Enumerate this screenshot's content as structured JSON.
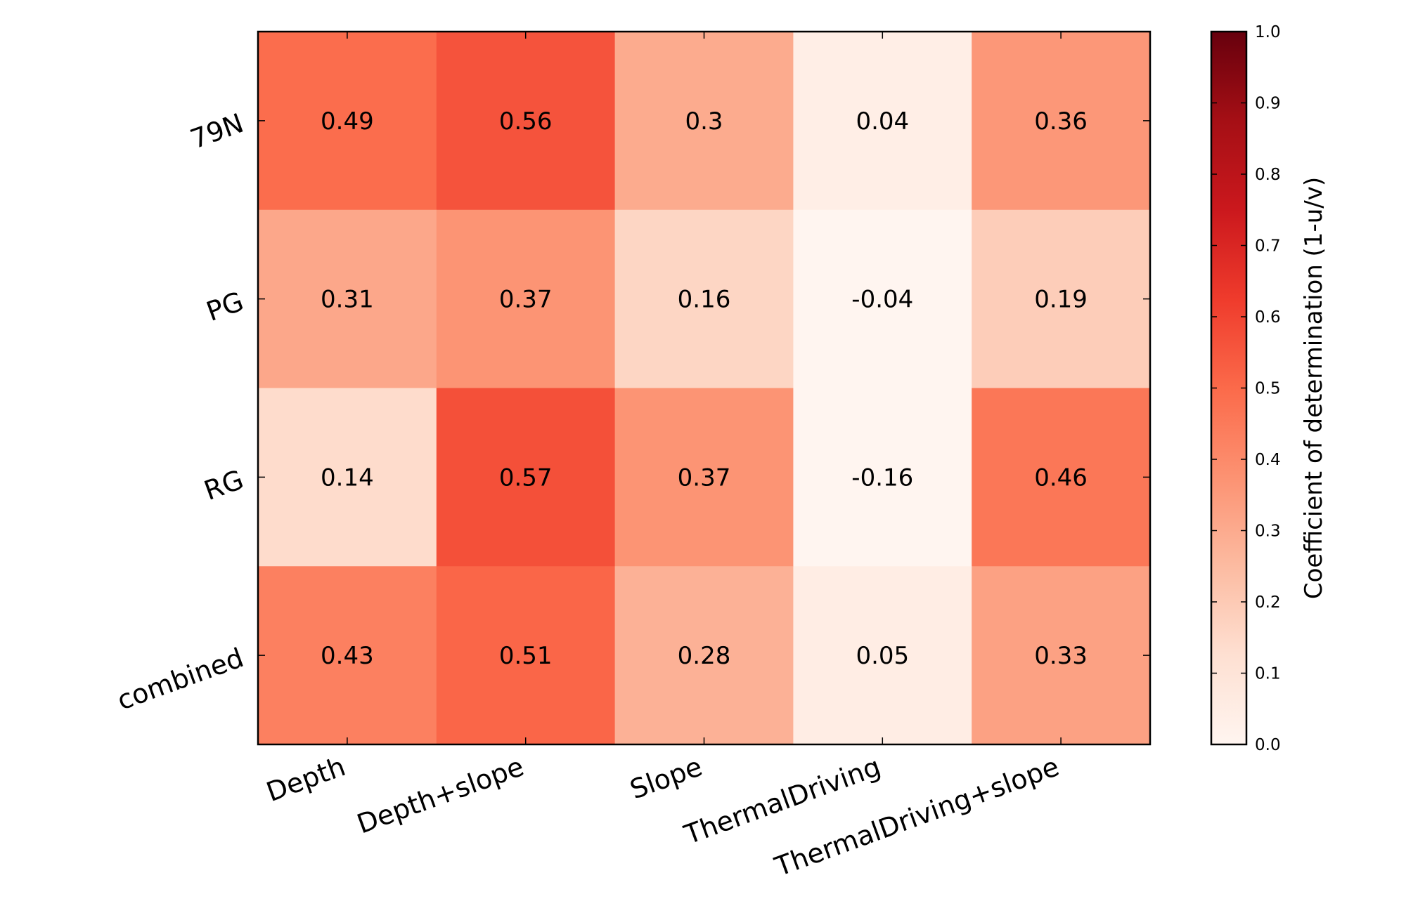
{
  "chart_data": {
    "type": "heatmap",
    "rows": [
      "79N",
      "PG",
      "RG",
      "combined"
    ],
    "columns": [
      "Depth",
      "Depth+slope",
      "Slope",
      "ThermalDriving",
      "ThermalDriving+slope"
    ],
    "values": [
      [
        0.49,
        0.56,
        0.3,
        0.04,
        0.36
      ],
      [
        0.31,
        0.37,
        0.16,
        -0.04,
        0.19
      ],
      [
        0.14,
        0.57,
        0.37,
        -0.16,
        0.46
      ],
      [
        0.43,
        0.51,
        0.28,
        0.05,
        0.33
      ]
    ],
    "value_labels": [
      [
        "0.49",
        "0.56",
        "0.3",
        "0.04",
        "0.36"
      ],
      [
        "0.31",
        "0.37",
        "0.16",
        "-0.04",
        "0.19"
      ],
      [
        "0.14",
        "0.57",
        "0.37",
        "-0.16",
        "0.46"
      ],
      [
        "0.43",
        "0.51",
        "0.28",
        "0.05",
        "0.33"
      ]
    ],
    "colormap": "Reds",
    "vmin": 0.0,
    "vmax": 1.0,
    "colorbar": {
      "label": "Coefficient of determination (1-u/v)",
      "ticks": [
        "0.0",
        "0.1",
        "0.2",
        "0.3",
        "0.4",
        "0.5",
        "0.6",
        "0.7",
        "0.8",
        "0.9",
        "1.0"
      ]
    },
    "colors": {
      "reds_stops": [
        "#fff5f0",
        "#fee0d2",
        "#fcbba1",
        "#fc9272",
        "#fb6a4a",
        "#ef3b2c",
        "#cb181d",
        "#a50f15",
        "#67000d"
      ]
    }
  }
}
